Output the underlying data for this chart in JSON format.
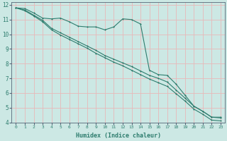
{
  "xlabel": "Humidex (Indice chaleur)",
  "xlim": [
    -0.5,
    23.5
  ],
  "ylim": [
    4,
    12.2
  ],
  "xticks": [
    0,
    1,
    2,
    3,
    4,
    5,
    6,
    7,
    8,
    9,
    10,
    11,
    12,
    13,
    14,
    15,
    16,
    17,
    18,
    19,
    20,
    21,
    22,
    23
  ],
  "yticks": [
    4,
    5,
    6,
    7,
    8,
    9,
    10,
    11,
    12
  ],
  "bg_color": "#cce8e4",
  "grid_color": "#e8b8b8",
  "line_color": "#2e7d6e",
  "line1_x": [
    0,
    1,
    2,
    3,
    4,
    5,
    6,
    7,
    8,
    9,
    10,
    11,
    12,
    13,
    14,
    15,
    16,
    17,
    18,
    19,
    20,
    21,
    22,
    23
  ],
  "line1_y": [
    11.8,
    11.75,
    11.45,
    11.1,
    11.05,
    11.1,
    10.85,
    10.55,
    10.5,
    10.5,
    10.3,
    10.5,
    11.05,
    11.0,
    10.7,
    7.55,
    7.25,
    7.2,
    6.6,
    5.85,
    5.1,
    4.75,
    4.35,
    4.35
  ],
  "line2_x": [
    0,
    1,
    2,
    3,
    4,
    5,
    6,
    7,
    8,
    9,
    10,
    11,
    12,
    13,
    14,
    15,
    16,
    17,
    18,
    19,
    20,
    21,
    22,
    23
  ],
  "line2_y": [
    11.8,
    11.65,
    11.3,
    10.95,
    10.4,
    10.1,
    9.8,
    9.5,
    9.2,
    8.9,
    8.55,
    8.3,
    8.05,
    7.8,
    7.5,
    7.2,
    7.0,
    6.75,
    6.2,
    5.65,
    5.1,
    4.75,
    4.35,
    4.3
  ],
  "line3_x": [
    0,
    1,
    2,
    3,
    4,
    5,
    6,
    7,
    8,
    9,
    10,
    11,
    12,
    13,
    14,
    15,
    16,
    17,
    18,
    19,
    20,
    21,
    22,
    23
  ],
  "line3_y": [
    11.8,
    11.6,
    11.25,
    10.85,
    10.3,
    9.95,
    9.65,
    9.35,
    9.05,
    8.7,
    8.4,
    8.1,
    7.85,
    7.55,
    7.25,
    6.95,
    6.7,
    6.45,
    5.95,
    5.45,
    4.9,
    4.55,
    4.15,
    4.1
  ]
}
